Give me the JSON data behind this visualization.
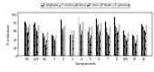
{
  "legend_labels": [
    "S. longifusus",
    "C. militaris",
    "A. flavus",
    "B. cereis",
    "P. funteri",
    "S. glomerusa"
  ],
  "legend_colors": [
    "#111111",
    "#777777",
    "#aaaaaa",
    "#444444",
    "#cccccc",
    "#eeeeee"
  ],
  "legend_hatches": [
    "",
    "///",
    "",
    "\\\\\\\\",
    "....",
    ""
  ],
  "x_labels": [
    "0.5",
    "0.25",
    "0.6",
    "1",
    "2",
    "3",
    "4",
    "5",
    "6",
    "7",
    "8",
    "100",
    "10",
    "12"
  ],
  "xlabel": "Compounds",
  "ylabel": "% inhibition",
  "ylim": [
    0,
    105
  ],
  "yticks": [
    0,
    20,
    40,
    60,
    80,
    100
  ],
  "data": [
    [
      85,
      78,
      55,
      52,
      88,
      52,
      97,
      62,
      90,
      83,
      95,
      62,
      52,
      78
    ],
    [
      80,
      82,
      45,
      48,
      65,
      58,
      72,
      58,
      72,
      68,
      73,
      52,
      48,
      72
    ],
    [
      72,
      68,
      48,
      42,
      68,
      62,
      78,
      68,
      78,
      58,
      68,
      48,
      42,
      68
    ],
    [
      58,
      62,
      28,
      38,
      52,
      38,
      52,
      42,
      52,
      52,
      58,
      38,
      32,
      62
    ],
    [
      68,
      58,
      38,
      48,
      58,
      52,
      62,
      52,
      62,
      48,
      62,
      42,
      38,
      58
    ],
    [
      78,
      75,
      58,
      52,
      72,
      62,
      82,
      70,
      80,
      70,
      78,
      55,
      52,
      75
    ]
  ]
}
